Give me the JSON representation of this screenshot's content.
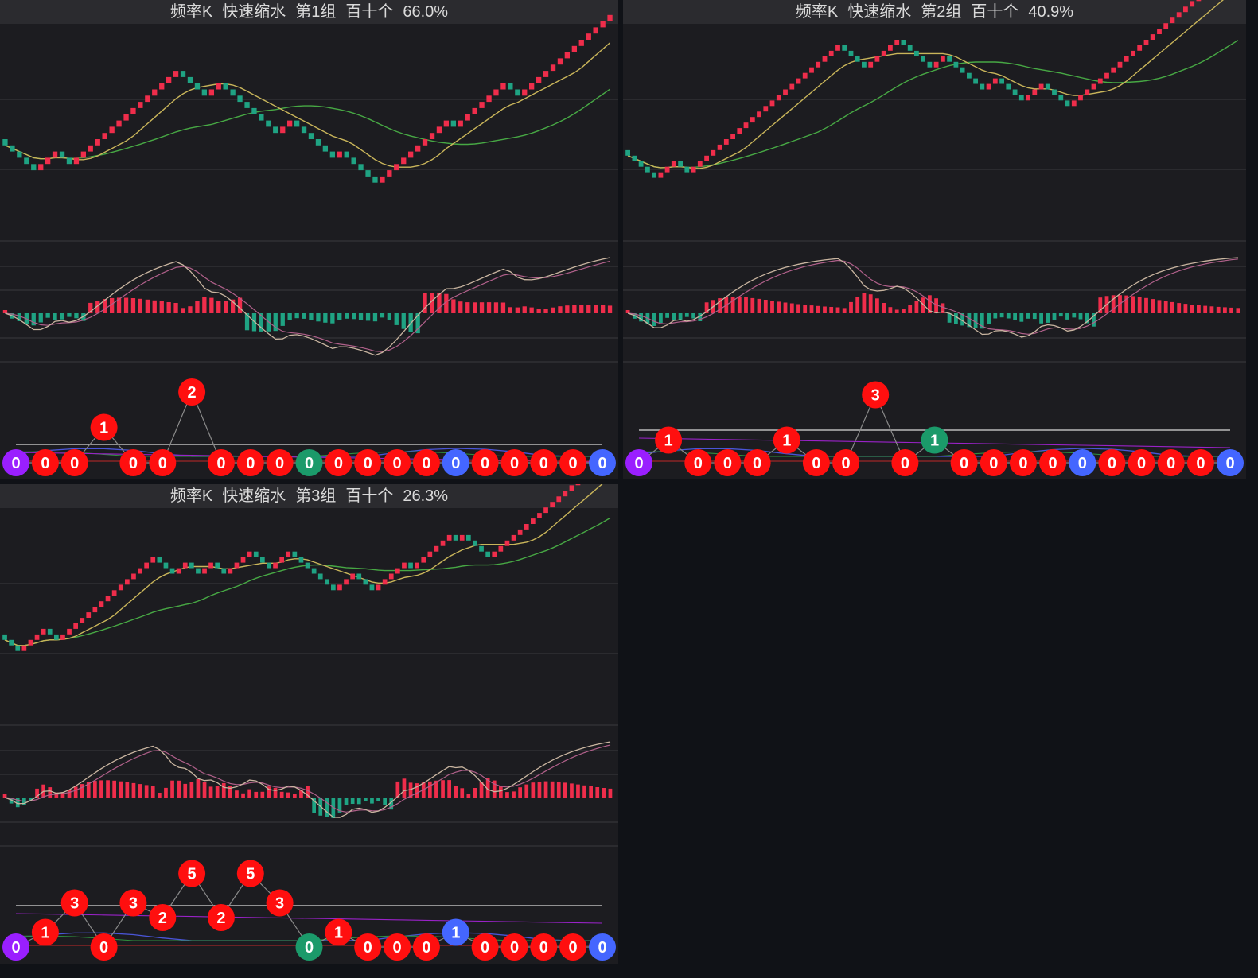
{
  "panels": [
    {
      "title": {
        "name": "频率K",
        "mode": "快速缩水",
        "group": "第1组",
        "digits": "百十个",
        "pct": "66.0%"
      },
      "k_path": [
        [
          -3,
          0
        ],
        [
          -2,
          0
        ],
        [
          2,
          -1
        ],
        [
          1,
          -1
        ],
        [
          -2,
          0
        ],
        [
          2,
          0
        ],
        [
          2,
          1
        ],
        [
          2,
          0
        ],
        [
          2,
          1
        ],
        [
          3,
          1
        ],
        [
          2,
          1
        ],
        [
          1,
          1
        ],
        [
          1,
          -1
        ],
        [
          -2,
          1
        ],
        [
          -2,
          0
        ],
        [
          1,
          0
        ],
        [
          1,
          -1
        ],
        [
          -2,
          0
        ],
        [
          -2,
          0
        ],
        [
          -2,
          1
        ],
        [
          -2,
          1
        ],
        [
          1,
          0
        ],
        [
          1,
          1
        ],
        [
          -1,
          1
        ],
        [
          -2,
          0
        ],
        [
          -1,
          -1
        ],
        [
          -2,
          0
        ],
        [
          1,
          -1
        ],
        [
          -3,
          0
        ],
        [
          -2,
          -1
        ],
        [
          1,
          -1
        ],
        [
          2,
          0
        ],
        [
          2,
          1
        ],
        [
          1,
          1
        ],
        [
          1,
          1
        ],
        [
          2,
          1
        ],
        [
          1,
          -1
        ],
        [
          -1,
          0
        ],
        [
          1,
          0
        ],
        [
          1,
          1
        ],
        [
          3,
          0
        ],
        [
          2,
          1
        ],
        [
          -2,
          0
        ],
        [
          1,
          -1
        ],
        [
          2,
          0
        ],
        [
          2,
          0
        ],
        [
          2,
          1
        ],
        [
          1,
          1
        ],
        [
          3,
          1
        ],
        [
          2,
          1
        ]
      ],
      "k_ylim": [
        -8,
        8
      ],
      "macd_ylim": [
        -1.5,
        1.5
      ],
      "counts": [
        0,
        0,
        0,
        1,
        0,
        0,
        2,
        0,
        0,
        0,
        0,
        0,
        0,
        0,
        0,
        0,
        0,
        0,
        0,
        0,
        0
      ],
      "types": [
        "purple",
        "red",
        "red",
        "red",
        "red",
        "red",
        "red",
        "red",
        "red",
        "red",
        "green",
        "red",
        "red",
        "red",
        "red",
        "blue",
        "red",
        "red",
        "red",
        "red",
        "blue"
      ],
      "cnt_ymax": 4
    },
    {
      "title": {
        "name": "频率K",
        "mode": "快速缩水",
        "group": "第2组",
        "digits": "百十个",
        "pct": "40.9%"
      },
      "k_path": [
        [
          -3,
          0
        ],
        [
          -2,
          0
        ],
        [
          2,
          -1
        ],
        [
          1,
          -1
        ],
        [
          -2,
          0
        ],
        [
          2,
          0
        ],
        [
          2,
          1
        ],
        [
          2,
          0
        ],
        [
          2,
          1
        ],
        [
          3,
          1
        ],
        [
          2,
          1
        ],
        [
          2,
          1
        ],
        [
          2,
          1
        ],
        [
          2,
          0
        ],
        [
          2,
          1
        ],
        [
          1,
          1
        ],
        [
          1,
          -1
        ],
        [
          -2,
          1
        ],
        [
          -2,
          0
        ],
        [
          1,
          0
        ],
        [
          1,
          1
        ],
        [
          2,
          0
        ],
        [
          1,
          1
        ],
        [
          -1,
          0
        ],
        [
          -2,
          -1
        ],
        [
          -2,
          0
        ],
        [
          1,
          0
        ],
        [
          1,
          -1
        ],
        [
          -1,
          0
        ],
        [
          -2,
          0
        ],
        [
          -2,
          1
        ],
        [
          -1,
          0
        ],
        [
          2,
          1
        ],
        [
          -1,
          0
        ],
        [
          -2,
          -1
        ],
        [
          -1,
          0
        ],
        [
          1,
          -1
        ],
        [
          2,
          -1
        ],
        [
          -1,
          0
        ],
        [
          -2,
          0
        ],
        [
          -1,
          -1
        ],
        [
          2,
          0
        ],
        [
          2,
          1
        ],
        [
          1,
          0
        ],
        [
          1,
          1
        ],
        [
          2,
          0
        ],
        [
          1,
          0
        ],
        [
          1,
          1
        ],
        [
          2,
          0
        ],
        [
          3,
          1
        ],
        [
          2,
          1
        ],
        [
          1,
          1
        ],
        [
          2,
          0
        ],
        [
          3,
          1
        ],
        [
          2,
          1
        ],
        [
          1,
          1
        ]
      ],
      "k_ylim": [
        -8,
        10
      ],
      "macd_ylim": [
        -1.5,
        1.5
      ],
      "counts": [
        0,
        1,
        0,
        0,
        0,
        1,
        0,
        0,
        3,
        0,
        1,
        0,
        0,
        0,
        0,
        0,
        0,
        0,
        0,
        0,
        0
      ],
      "types": [
        "purple",
        "red",
        "red",
        "red",
        "red",
        "red",
        "red",
        "red",
        "red",
        "red",
        "green",
        "red",
        "red",
        "red",
        "red",
        "blue",
        "red",
        "red",
        "red",
        "red",
        "blue"
      ],
      "cnt_ymax": 4
    },
    {
      "title": {
        "name": "频率K",
        "mode": "快速缩水",
        "group": "第3组",
        "digits": "百十个",
        "pct": "26.3%"
      },
      "k_path": [
        [
          -3,
          0
        ],
        [
          2,
          0
        ],
        [
          2,
          1
        ],
        [
          -2,
          0
        ],
        [
          1,
          0
        ],
        [
          2,
          1
        ],
        [
          2,
          0
        ],
        [
          2,
          1
        ],
        [
          1,
          1
        ],
        [
          3,
          1
        ],
        [
          2,
          1
        ],
        [
          1,
          0
        ],
        [
          1,
          -1
        ],
        [
          -2,
          0
        ],
        [
          -1,
          0
        ],
        [
          2,
          1
        ],
        [
          -2,
          0
        ],
        [
          1,
          0
        ],
        [
          1,
          -1
        ],
        [
          -2,
          0
        ],
        [
          1,
          0
        ],
        [
          2,
          1
        ],
        [
          1,
          -1
        ],
        [
          -2,
          0
        ],
        [
          -1,
          -1
        ],
        [
          2,
          0
        ],
        [
          1,
          0
        ],
        [
          -1,
          0
        ],
        [
          -2,
          0
        ],
        [
          -1,
          -1
        ],
        [
          -2,
          0
        ],
        [
          -1,
          -1
        ],
        [
          2,
          0
        ],
        [
          1,
          0
        ],
        [
          -2,
          0
        ],
        [
          -1,
          1
        ],
        [
          2,
          1
        ],
        [
          2,
          1
        ],
        [
          1,
          0
        ],
        [
          -1,
          0
        ],
        [
          1,
          1
        ],
        [
          2,
          1
        ],
        [
          1,
          -1
        ],
        [
          2,
          0
        ],
        [
          -1,
          -1
        ],
        [
          1,
          0
        ],
        [
          -2,
          0
        ],
        [
          -2,
          0
        ],
        [
          1,
          0
        ],
        [
          2,
          0
        ],
        [
          3,
          1
        ],
        [
          2,
          1
        ],
        [
          1,
          1
        ],
        [
          3,
          1
        ],
        [
          2,
          1
        ],
        [
          3,
          1
        ],
        [
          2,
          1
        ]
      ],
      "k_ylim": [
        -8,
        10
      ],
      "macd_ylim": [
        -1.5,
        1.5
      ],
      "counts": [
        0,
        1,
        3,
        0,
        3,
        2,
        5,
        2,
        5,
        3,
        0,
        1,
        0,
        0,
        0,
        1,
        0,
        0,
        0,
        0,
        0
      ],
      "types": [
        "purple",
        "red",
        "red",
        "red",
        "red",
        "red",
        "red",
        "red",
        "red",
        "red",
        "green",
        "red",
        "red",
        "red",
        "red",
        "blue",
        "red",
        "red",
        "red",
        "red",
        "blue"
      ],
      "cnt_ymax": 6
    }
  ],
  "colors": {
    "up": "#ef2d4b",
    "down": "#1fa383",
    "ma1": "#c9b55a",
    "ma2": "#47a844",
    "dif": "#c9b5a0",
    "dea": "#b0608a",
    "grid": "#3a3a3e",
    "purple": "#9a1fff",
    "red": "#ff0f0f",
    "green": "#1b9a6a",
    "blue": "#4466ff",
    "line_blue": "#4a55d8",
    "line_green": "#2e8f3e",
    "line_purple": "#9a22c8",
    "line_red": "#c02828",
    "ref": "#d8d8d8"
  }
}
